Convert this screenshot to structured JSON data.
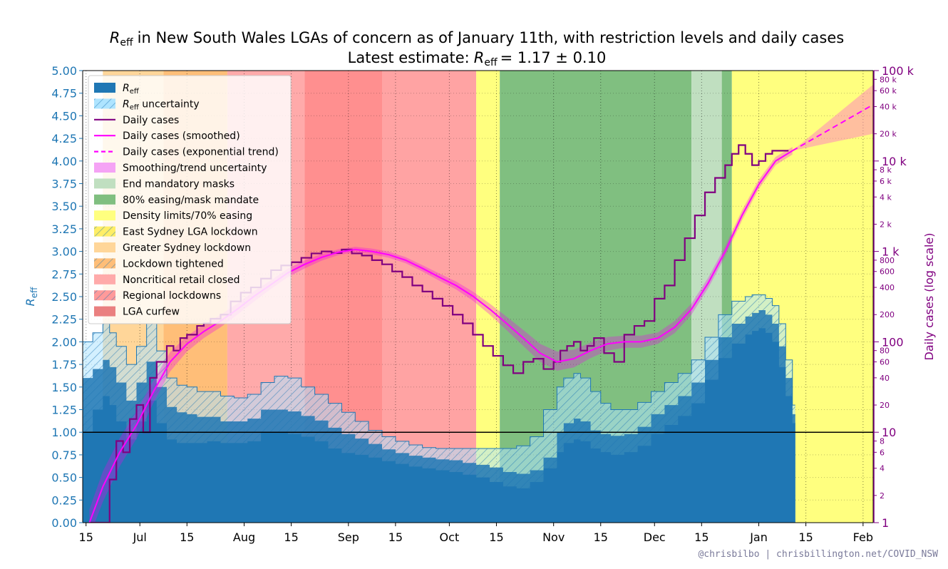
{
  "chart_data": {
    "type": "area",
    "title_line1": "R_eff in New South Wales LGAs of concern as of January 11th, with restriction levels and daily cases",
    "title_line2": "Latest estimate: R_eff = 1.17 ± 0.10",
    "title_prefix": "in New South Wales LGAs of concern as of January 11th, with restriction levels and daily cases",
    "title2_prefix": "Latest estimate:",
    "title2_suffix": "= 1.17 ± 0.10",
    "reff_symbol": "R",
    "reff_sub": "eff",
    "ylabel_left": "R_eff",
    "ylabel_right": "Daily cases (log scale)",
    "ylim_left": [
      0,
      5
    ],
    "ylim_right": [
      1,
      100000
    ],
    "right_scale": "log",
    "x_ticks": [
      "15",
      "Jul",
      "15",
      "Aug",
      "15",
      "Sep",
      "15",
      "Oct",
      "15",
      "Nov",
      "15",
      "Dec",
      "15",
      "Jan",
      "15",
      "Feb"
    ],
    "x_tick_days": [
      0,
      16,
      30,
      47,
      61,
      78,
      92,
      108,
      122,
      139,
      153,
      169,
      183,
      200,
      214,
      231
    ],
    "x_range_days": [
      -1,
      234
    ],
    "y_ticks_left": [
      "0.00",
      "0.25",
      "0.50",
      "0.75",
      "1.00",
      "1.25",
      "1.50",
      "1.75",
      "2.00",
      "2.25",
      "2.50",
      "2.75",
      "3.00",
      "3.25",
      "3.50",
      "3.75",
      "4.00",
      "4.25",
      "4.50",
      "4.75",
      "5.00"
    ],
    "y_ticks_right_major": [
      "1",
      "10",
      "100",
      "1 k",
      "10 k",
      "100 k"
    ],
    "y_ticks_right_minor": [
      "2",
      "4",
      "6",
      "8",
      "20",
      "40",
      "60",
      "80",
      "200",
      "400",
      "600",
      "800",
      "2 k",
      "4 k",
      "6 k",
      "8 k",
      "20 k",
      "40 k",
      "60 k",
      "80 k"
    ],
    "y_ticks_right_minor_values": [
      2,
      4,
      6,
      8,
      20,
      40,
      60,
      80,
      200,
      400,
      600,
      800,
      2000,
      4000,
      6000,
      8000,
      20000,
      40000,
      60000,
      80000
    ],
    "reference_line": 1.0,
    "reff_series": {
      "name": "R_eff",
      "color": "#1f77b4",
      "days": [
        -1,
        2,
        5,
        7,
        9,
        12,
        15,
        18,
        21,
        24,
        27,
        30,
        33,
        36,
        40,
        44,
        48,
        52,
        56,
        60,
        64,
        68,
        72,
        76,
        80,
        84,
        88,
        92,
        96,
        100,
        104,
        108,
        112,
        116,
        120,
        124,
        128,
        132,
        136,
        140,
        142,
        145,
        147,
        150,
        153,
        156,
        160,
        164,
        168,
        172,
        176,
        180,
        184,
        188,
        192,
        196,
        198,
        200,
        202,
        204,
        206,
        208,
        210
      ],
      "values": [
        1.6,
        1.7,
        1.8,
        1.72,
        1.55,
        1.35,
        1.55,
        1.78,
        1.5,
        1.28,
        1.22,
        1.2,
        1.17,
        1.17,
        1.12,
        1.12,
        1.15,
        1.25,
        1.25,
        1.23,
        1.18,
        1.13,
        1.05,
        0.98,
        0.93,
        0.87,
        0.81,
        0.77,
        0.74,
        0.72,
        0.7,
        0.69,
        0.66,
        0.64,
        0.61,
        0.56,
        0.54,
        0.58,
        0.72,
        1.0,
        1.1,
        1.15,
        1.12,
        1.02,
        0.98,
        0.96,
        0.98,
        1.06,
        1.2,
        1.3,
        1.4,
        1.55,
        1.8,
        2.05,
        2.2,
        2.28,
        2.32,
        2.35,
        2.3,
        2.2,
        1.95,
        1.6,
        1.2
      ],
      "upper": [
        2.0,
        2.1,
        2.2,
        2.1,
        1.95,
        1.75,
        1.95,
        2.2,
        1.9,
        1.6,
        1.52,
        1.5,
        1.45,
        1.45,
        1.4,
        1.38,
        1.42,
        1.55,
        1.62,
        1.6,
        1.5,
        1.42,
        1.32,
        1.22,
        1.12,
        1.02,
        0.95,
        0.9,
        0.86,
        0.83,
        0.82,
        0.82,
        0.82,
        0.82,
        0.82,
        0.82,
        0.85,
        0.95,
        1.25,
        1.5,
        1.6,
        1.65,
        1.6,
        1.45,
        1.32,
        1.25,
        1.25,
        1.33,
        1.45,
        1.55,
        1.65,
        1.8,
        2.05,
        2.3,
        2.45,
        2.5,
        2.52,
        2.52,
        2.48,
        2.4,
        2.2,
        1.8,
        1.3
      ]
    },
    "reff_lower_band": [
      1.0,
      1.25,
      1.4,
      1.3,
      1.12,
      0.92,
      1.12,
      1.35,
      1.1,
      0.92,
      0.88,
      0.88,
      0.88,
      0.9,
      0.88,
      0.88,
      0.9,
      1.0,
      1.0,
      0.98,
      0.95,
      0.9,
      0.82,
      0.77,
      0.75,
      0.72,
      0.68,
      0.65,
      0.62,
      0.6,
      0.58,
      0.56,
      0.53,
      0.5,
      0.45,
      0.4,
      0.38,
      0.45,
      0.6,
      0.78,
      0.88,
      0.92,
      0.9,
      0.82,
      0.78,
      0.75,
      0.78,
      0.85,
      0.98,
      1.08,
      1.18,
      1.32,
      1.58,
      1.82,
      1.98,
      2.08,
      2.12,
      2.15,
      2.1,
      2.0,
      1.72,
      1.4,
      1.1
    ],
    "daily_cases_smoothed": {
      "name": "Daily cases (smoothed)",
      "color": "#ff00ff",
      "days": [
        1,
        5,
        10,
        15,
        20,
        25,
        30,
        35,
        40,
        45,
        50,
        55,
        60,
        65,
        70,
        75,
        80,
        85,
        90,
        95,
        100,
        105,
        110,
        115,
        120,
        125,
        130,
        135,
        140,
        145,
        150,
        155,
        160,
        165,
        170,
        175,
        180,
        185,
        190,
        195,
        200,
        205,
        210
      ],
      "values": [
        1,
        2.5,
        6,
        12,
        28,
        60,
        95,
        130,
        170,
        230,
        320,
        430,
        580,
        720,
        860,
        980,
        1050,
        1000,
        920,
        800,
        650,
        520,
        420,
        320,
        230,
        160,
        110,
        75,
        60,
        65,
        80,
        95,
        100,
        100,
        110,
        145,
        230,
        450,
        1000,
        2500,
        5500,
        10000,
        13000
      ]
    },
    "daily_cases_lower": [
      0.7,
      1.7,
      4.2,
      8.5,
      21,
      47,
      78,
      110,
      145,
      200,
      280,
      385,
      520,
      650,
      790,
      910,
      980,
      930,
      850,
      740,
      600,
      475,
      380,
      285,
      200,
      135,
      90,
      60,
      48,
      52,
      66,
      80,
      86,
      86,
      95,
      125,
      200,
      395,
      880,
      2200,
      4900,
      9000,
      11800
    ],
    "daily_cases_upper": [
      1.4,
      3.7,
      8.6,
      17,
      37,
      77,
      116,
      155,
      200,
      265,
      365,
      480,
      645,
      795,
      935,
      1055,
      1125,
      1075,
      995,
      865,
      705,
      570,
      465,
      360,
      265,
      190,
      135,
      95,
      78,
      82,
      98,
      113,
      117,
      117,
      127,
      170,
      265,
      515,
      1140,
      2840,
      6200,
      11100,
      14300
    ],
    "daily_cases_raw": {
      "name": "Daily cases",
      "color": "#800080",
      "days": [
        1,
        4,
        7,
        9,
        11,
        13,
        15,
        17,
        19,
        21,
        24,
        26,
        28,
        30,
        33,
        35,
        37,
        40,
        43,
        46,
        49,
        52,
        55,
        58,
        61,
        64,
        67,
        70,
        73,
        76,
        79,
        82,
        85,
        88,
        91,
        94,
        97,
        100,
        103,
        106,
        109,
        112,
        115,
        118,
        121,
        124,
        127,
        130,
        133,
        136,
        139,
        141,
        143,
        145,
        147,
        149,
        151,
        154,
        157,
        160,
        163,
        166,
        169,
        172,
        175,
        178,
        181,
        184,
        187,
        190,
        192,
        194,
        196,
        198,
        200,
        202,
        204,
        206,
        208
      ],
      "values": [
        1,
        1,
        3,
        8,
        6,
        14,
        20,
        10,
        40,
        60,
        90,
        80,
        110,
        120,
        150,
        160,
        180,
        200,
        280,
        350,
        400,
        500,
        620,
        700,
        760,
        850,
        950,
        1000,
        960,
        1050,
        950,
        900,
        800,
        720,
        600,
        520,
        420,
        360,
        300,
        250,
        200,
        160,
        120,
        90,
        70,
        55,
        45,
        60,
        65,
        50,
        60,
        80,
        90,
        100,
        80,
        90,
        110,
        75,
        60,
        120,
        150,
        170,
        300,
        420,
        800,
        1400,
        2500,
        4500,
        6500,
        9000,
        12000,
        15000,
        12000,
        9000,
        10000,
        12000,
        13000,
        13000,
        13000
      ],
      "note": ""
    },
    "exp_trend": {
      "name": "Daily cases (exponential trend)",
      "color": "#ff00ff",
      "days": [
        210,
        234
      ],
      "values": [
        13000,
        42000
      ],
      "lower_end": 20000,
      "upper_end": 70000
    },
    "restriction_periods": [
      {
        "name": "Greater Sydney lockdown",
        "start": 5,
        "end": 23,
        "color": "#ffd699"
      },
      {
        "name": "Lockdown tightened",
        "start": 23,
        "end": 42,
        "color": "#ffbe78"
      },
      {
        "name": "Noncritical retail closed",
        "start": 42,
        "end": 65,
        "color": "#ffaaaa"
      },
      {
        "name": "LGA curfew",
        "start": 65,
        "end": 88,
        "color": "#ff8f8f"
      },
      {
        "name": "Regional lockdowns",
        "start": 88,
        "end": 116,
        "color": "#ffa3a3"
      },
      {
        "name": "Density limits/70% easing",
        "start": 116,
        "end": 123,
        "color": "#ffff7f"
      },
      {
        "name": "80% easing/mask mandate",
        "start": 123,
        "end": 180,
        "color": "#80bf80"
      },
      {
        "name": "End mandatory masks",
        "start": 180,
        "end": 189,
        "color": "#c0dfc0"
      },
      {
        "name": "80% easing/mask mandate",
        "start": 189,
        "end": 192,
        "color": "#80bf80"
      },
      {
        "name": "Density limits/70% easing",
        "start": 192,
        "end": 234,
        "color": "#ffff7f"
      }
    ],
    "legend_position": "upper-left",
    "legend": [
      {
        "label": "R",
        "sub": "eff",
        "suffix": "",
        "kind": "patch",
        "color": "#1f77b4"
      },
      {
        "label": "R",
        "sub": "eff",
        "suffix": " uncertainty",
        "kind": "hatch",
        "color": "#aee4ff"
      },
      {
        "label": "Daily cases",
        "kind": "line",
        "color": "#800080"
      },
      {
        "label": "Daily cases (smoothed)",
        "kind": "line",
        "color": "#ff00ff"
      },
      {
        "label": "Daily cases (exponential trend)",
        "kind": "dash",
        "color": "#ff00ff"
      },
      {
        "label": "Smoothing/trend uncertainty",
        "kind": "patch",
        "color": "#f5a3f5"
      },
      {
        "label": "End mandatory masks",
        "kind": "patch",
        "color": "#c0dfc0"
      },
      {
        "label": "80% easing/mask mandate",
        "kind": "patch",
        "color": "#80bf80"
      },
      {
        "label": "Density limits/70% easing",
        "kind": "patch",
        "color": "#ffff7f"
      },
      {
        "label": "East Sydney LGA lockdown",
        "kind": "hatch",
        "color": "#ffee66"
      },
      {
        "label": "Greater Sydney lockdown",
        "kind": "patch",
        "color": "#ffd699"
      },
      {
        "label": "Lockdown tightened",
        "kind": "hatch",
        "color": "#ffbe78"
      },
      {
        "label": "Noncritical retail closed",
        "kind": "patch",
        "color": "#ffaaaa"
      },
      {
        "label": "Regional lockdowns",
        "kind": "hatch",
        "color": "#ff9a9a"
      },
      {
        "label": "LGA curfew",
        "kind": "patch",
        "color": "#ea8080"
      }
    ],
    "grid": true,
    "credit": "@chrisbilbo | chrisbillington.net/COVID_NSW"
  }
}
